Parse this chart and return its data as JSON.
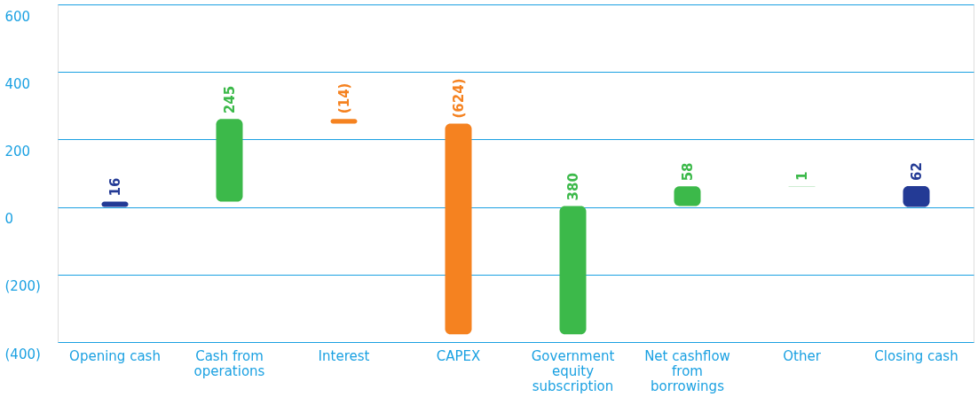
{
  "chart_data": {
    "type": "bar",
    "categories": [
      "Opening cash",
      "Cash from operations",
      "Interest",
      "CAPEX",
      "Government equity subscription",
      "Net cashflow from borrowings",
      "Other",
      "Closing cash"
    ],
    "values": [
      16,
      245,
      -14,
      -624,
      380,
      58,
      1,
      62
    ],
    "base": [
      0,
      16,
      261,
      247,
      -377,
      3,
      61,
      0
    ],
    "colors": [
      "#233a95",
      "#3cb94a",
      "#f58220",
      "#f58220",
      "#3cb94a",
      "#3cb94a",
      "#3cb94a",
      "#233a95"
    ],
    "value_labels": [
      "16",
      "245",
      "(14)",
      "(624)",
      "380",
      "58",
      "1",
      "62"
    ],
    "ylim": [
      -400,
      600
    ],
    "yticks": [
      {
        "value": -400,
        "label": "(400)"
      },
      {
        "value": -200,
        "label": "(200)"
      },
      0,
      200,
      400,
      600
    ],
    "grid": "y"
  }
}
